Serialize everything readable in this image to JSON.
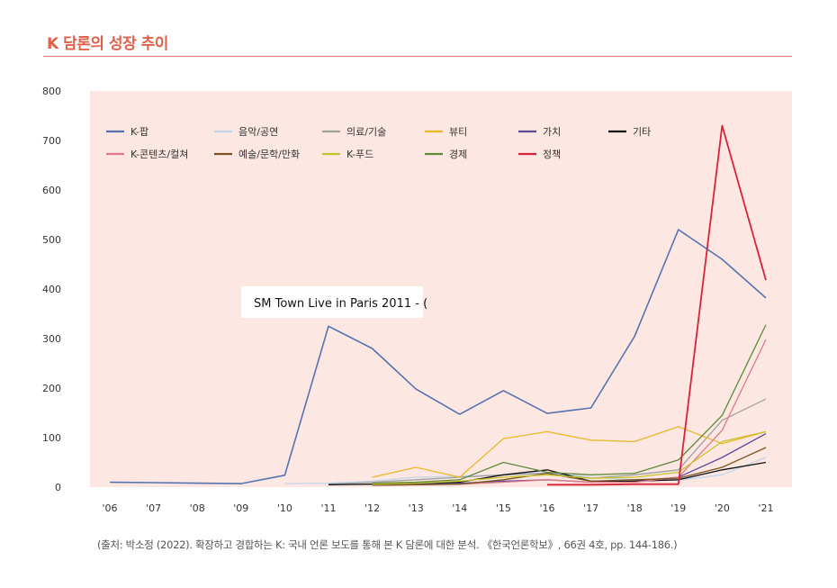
{
  "header": {
    "title": "K 담론의 성장 추이"
  },
  "source_note": "(출처: 박소정 (2022). 확장하고 경합하는 K: 국내 언론 보도를 통해 본 K 담론에 대한 분석. 《한국언론학보》, 66권 4호, pp. 144-186.)",
  "tooltip": {
    "text": "SM Town Live in Paris 2011 - ("
  },
  "chart_data": {
    "type": "line",
    "title": "K 담론의 성장 추이",
    "xlabel": "",
    "ylabel": "",
    "ylim": [
      0,
      800
    ],
    "yticks": [
      0,
      100,
      200,
      300,
      400,
      500,
      600,
      700,
      800
    ],
    "categories": [
      "'06",
      "'07",
      "'08",
      "'09",
      "'10",
      "'11",
      "'12",
      "'13",
      "'14",
      "'15",
      "'16",
      "'17",
      "'18",
      "'19",
      "'20",
      "'21"
    ],
    "grid": false,
    "legend_position": "top-left",
    "series": [
      {
        "name": "K-팝",
        "color": "#5573b0",
        "width": 1.6,
        "values": [
          10,
          9,
          8,
          7,
          24,
          325,
          280,
          198,
          147,
          195,
          149,
          160,
          305,
          520,
          460,
          382
        ]
      },
      {
        "name": "음악/공연",
        "color": "#bfd6ea",
        "width": 1.3,
        "values": [
          null,
          null,
          null,
          null,
          7,
          8,
          12,
          20,
          22,
          25,
          30,
          20,
          15,
          14,
          25,
          60
        ]
      },
      {
        "name": "의료/기술",
        "color": "#a0a0a0",
        "width": 1.3,
        "values": [
          null,
          null,
          null,
          null,
          null,
          6,
          10,
          15,
          20,
          25,
          28,
          18,
          25,
          35,
          135,
          178
        ]
      },
      {
        "name": "뷰티",
        "color": "#e9b92a",
        "width": 1.3,
        "values": [
          null,
          null,
          null,
          null,
          null,
          null,
          20,
          40,
          20,
          98,
          112,
          95,
          92,
          122,
          88,
          112
        ]
      },
      {
        "name": "가치",
        "color": "#5b4a9a",
        "width": 1.3,
        "values": [
          null,
          null,
          null,
          null,
          null,
          null,
          5,
          6,
          8,
          12,
          15,
          10,
          12,
          20,
          60,
          108
        ]
      },
      {
        "name": "기타",
        "color": "#111111",
        "width": 1.3,
        "values": [
          null,
          null,
          null,
          null,
          null,
          5,
          6,
          8,
          10,
          25,
          35,
          12,
          12,
          15,
          35,
          50
        ]
      },
      {
        "name": "K-콘텐츠/컬쳐",
        "color": "#e07a8a",
        "width": 1.3,
        "values": [
          null,
          null,
          null,
          null,
          null,
          null,
          4,
          5,
          6,
          10,
          15,
          10,
          10,
          20,
          115,
          298
        ]
      },
      {
        "name": "예술/문학/만화",
        "color": "#7a5522",
        "width": 1.3,
        "values": [
          null,
          null,
          null,
          null,
          null,
          null,
          4,
          5,
          6,
          15,
          28,
          12,
          15,
          18,
          40,
          80
        ]
      },
      {
        "name": "K-푸드",
        "color": "#c5c42a",
        "width": 1.3,
        "values": [
          null,
          null,
          null,
          null,
          null,
          null,
          6,
          8,
          12,
          20,
          25,
          18,
          20,
          30,
          92,
          112
        ]
      },
      {
        "name": "경제",
        "color": "#5c8a3a",
        "width": 1.3,
        "values": [
          null,
          null,
          null,
          null,
          null,
          null,
          8,
          10,
          15,
          50,
          30,
          25,
          28,
          55,
          145,
          328
        ]
      },
      {
        "name": "정책",
        "color": "#d8233a",
        "width": 1.8,
        "values": [
          null,
          null,
          null,
          null,
          null,
          null,
          null,
          null,
          null,
          null,
          5,
          5,
          6,
          6,
          730,
          418
        ]
      }
    ]
  }
}
